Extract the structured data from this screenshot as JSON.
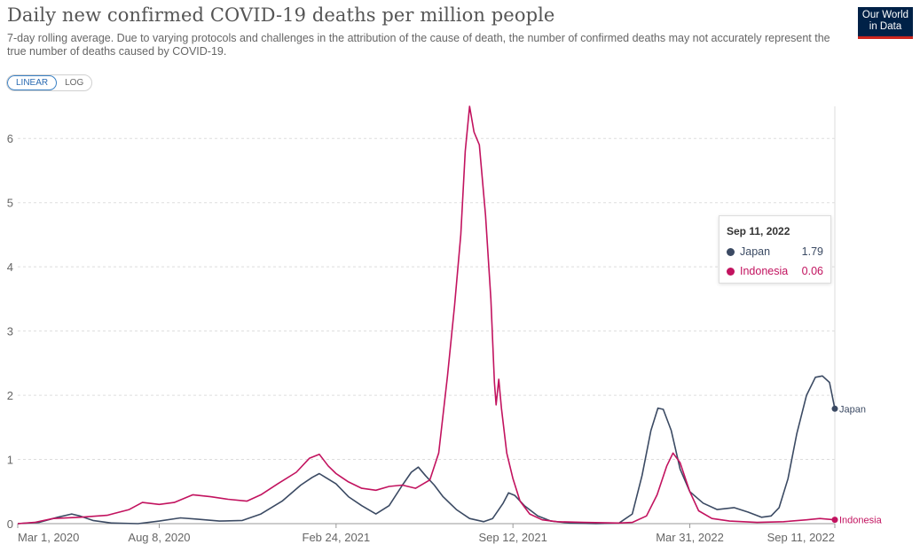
{
  "header": {
    "title": "Daily new confirmed COVID-19 deaths per million people",
    "subtitle": "7-day rolling average. Due to varying protocols and challenges in the attribution of the cause of death, the number of confirmed deaths may not accurately represent the true number of deaths caused by COVID-19.",
    "logo_line1": "Our World",
    "logo_line2": "in Data"
  },
  "scale_toggle": {
    "linear_label": "LINEAR",
    "log_label": "LOG",
    "selected": "LINEAR"
  },
  "tooltip": {
    "date": "Sep 11, 2022",
    "rows": [
      {
        "name": "Japan",
        "value": "1.79",
        "color": "#3b4a63"
      },
      {
        "name": "Indonesia",
        "value": "0.06",
        "color": "#c2135f"
      }
    ]
  },
  "colors": {
    "japan": "#3b4a63",
    "indonesia": "#c2135f",
    "grid": "#dddddd"
  },
  "chart_data": {
    "type": "line",
    "title": "Daily new confirmed COVID-19 deaths per million people",
    "xlabel": "",
    "ylabel": "",
    "ylim": [
      0,
      6.5
    ],
    "xlim": [
      "2020-03-01",
      "2022-09-11"
    ],
    "y_ticks": [
      0,
      1,
      2,
      3,
      4,
      5,
      6
    ],
    "x_ticks": [
      {
        "date": "2020-03-01",
        "label": "Mar 1, 2020"
      },
      {
        "date": "2020-08-08",
        "label": "Aug 8, 2020"
      },
      {
        "date": "2021-02-24",
        "label": "Feb 24, 2021"
      },
      {
        "date": "2021-09-12",
        "label": "Sep 12, 2021"
      },
      {
        "date": "2022-03-31",
        "label": "Mar 31, 2022"
      },
      {
        "date": "2022-09-11",
        "label": "Sep 11, 2022"
      }
    ],
    "grid": "horizontal dashed",
    "series": [
      {
        "name": "Japan",
        "color": "#3b4a63",
        "end_label": "Japan",
        "points": [
          [
            "2020-03-01",
            0.0
          ],
          [
            "2020-03-25",
            0.02
          ],
          [
            "2020-04-15",
            0.1
          ],
          [
            "2020-05-01",
            0.15
          ],
          [
            "2020-05-10",
            0.12
          ],
          [
            "2020-05-25",
            0.05
          ],
          [
            "2020-06-15",
            0.01
          ],
          [
            "2020-07-15",
            0.0
          ],
          [
            "2020-08-08",
            0.04
          ],
          [
            "2020-09-01",
            0.09
          ],
          [
            "2020-09-20",
            0.07
          ],
          [
            "2020-10-15",
            0.04
          ],
          [
            "2020-11-10",
            0.05
          ],
          [
            "2020-12-01",
            0.15
          ],
          [
            "2020-12-25",
            0.35
          ],
          [
            "2021-01-15",
            0.6
          ],
          [
            "2021-01-28",
            0.72
          ],
          [
            "2021-02-05",
            0.78
          ],
          [
            "2021-02-12",
            0.72
          ],
          [
            "2021-02-24",
            0.62
          ],
          [
            "2021-03-10",
            0.42
          ],
          [
            "2021-03-25",
            0.28
          ],
          [
            "2021-04-10",
            0.15
          ],
          [
            "2021-04-25",
            0.28
          ],
          [
            "2021-05-10",
            0.6
          ],
          [
            "2021-05-20",
            0.8
          ],
          [
            "2021-05-28",
            0.88
          ],
          [
            "2021-06-05",
            0.75
          ],
          [
            "2021-06-15",
            0.6
          ],
          [
            "2021-06-25",
            0.42
          ],
          [
            "2021-07-10",
            0.22
          ],
          [
            "2021-07-25",
            0.08
          ],
          [
            "2021-08-10",
            0.03
          ],
          [
            "2021-08-20",
            0.08
          ],
          [
            "2021-09-01",
            0.32
          ],
          [
            "2021-09-07",
            0.48
          ],
          [
            "2021-09-14",
            0.44
          ],
          [
            "2021-09-25",
            0.28
          ],
          [
            "2021-10-10",
            0.12
          ],
          [
            "2021-10-25",
            0.04
          ],
          [
            "2021-11-15",
            0.01
          ],
          [
            "2021-12-15",
            0.0
          ],
          [
            "2022-01-10",
            0.01
          ],
          [
            "2022-01-25",
            0.15
          ],
          [
            "2022-02-05",
            0.75
          ],
          [
            "2022-02-15",
            1.45
          ],
          [
            "2022-02-23",
            1.8
          ],
          [
            "2022-03-01",
            1.78
          ],
          [
            "2022-03-10",
            1.45
          ],
          [
            "2022-03-20",
            0.85
          ],
          [
            "2022-03-31",
            0.5
          ],
          [
            "2022-04-15",
            0.32
          ],
          [
            "2022-05-01",
            0.22
          ],
          [
            "2022-05-20",
            0.25
          ],
          [
            "2022-06-05",
            0.18
          ],
          [
            "2022-06-20",
            0.1
          ],
          [
            "2022-07-01",
            0.12
          ],
          [
            "2022-07-10",
            0.25
          ],
          [
            "2022-07-20",
            0.7
          ],
          [
            "2022-07-30",
            1.4
          ],
          [
            "2022-08-10",
            2.0
          ],
          [
            "2022-08-20",
            2.28
          ],
          [
            "2022-08-28",
            2.3
          ],
          [
            "2022-09-05",
            2.2
          ],
          [
            "2022-09-11",
            1.79
          ]
        ]
      },
      {
        "name": "Indonesia",
        "color": "#c2135f",
        "end_label": "Indonesia",
        "points": [
          [
            "2020-03-01",
            0.0
          ],
          [
            "2020-03-20",
            0.02
          ],
          [
            "2020-04-10",
            0.08
          ],
          [
            "2020-05-10",
            0.1
          ],
          [
            "2020-06-10",
            0.13
          ],
          [
            "2020-07-05",
            0.22
          ],
          [
            "2020-07-20",
            0.33
          ],
          [
            "2020-08-08",
            0.3
          ],
          [
            "2020-08-25",
            0.33
          ],
          [
            "2020-09-15",
            0.45
          ],
          [
            "2020-10-05",
            0.42
          ],
          [
            "2020-10-25",
            0.38
          ],
          [
            "2020-11-15",
            0.35
          ],
          [
            "2020-12-01",
            0.45
          ],
          [
            "2020-12-20",
            0.62
          ],
          [
            "2021-01-10",
            0.8
          ],
          [
            "2021-01-25",
            1.02
          ],
          [
            "2021-02-05",
            1.08
          ],
          [
            "2021-02-15",
            0.9
          ],
          [
            "2021-02-24",
            0.78
          ],
          [
            "2021-03-10",
            0.65
          ],
          [
            "2021-03-25",
            0.55
          ],
          [
            "2021-04-10",
            0.52
          ],
          [
            "2021-04-25",
            0.58
          ],
          [
            "2021-05-10",
            0.6
          ],
          [
            "2021-05-25",
            0.55
          ],
          [
            "2021-06-10",
            0.68
          ],
          [
            "2021-06-20",
            1.1
          ],
          [
            "2021-06-30",
            2.3
          ],
          [
            "2021-07-08",
            3.4
          ],
          [
            "2021-07-15",
            4.5
          ],
          [
            "2021-07-20",
            5.8
          ],
          [
            "2021-07-25",
            6.5
          ],
          [
            "2021-07-30",
            6.1
          ],
          [
            "2021-08-05",
            5.9
          ],
          [
            "2021-08-12",
            4.8
          ],
          [
            "2021-08-18",
            3.5
          ],
          [
            "2021-08-22",
            2.2
          ],
          [
            "2021-08-24",
            1.85
          ],
          [
            "2021-08-27",
            2.25
          ],
          [
            "2021-08-30",
            1.8
          ],
          [
            "2021-09-05",
            1.1
          ],
          [
            "2021-09-12",
            0.7
          ],
          [
            "2021-09-20",
            0.35
          ],
          [
            "2021-10-01",
            0.15
          ],
          [
            "2021-10-15",
            0.06
          ],
          [
            "2021-11-01",
            0.03
          ],
          [
            "2021-12-01",
            0.02
          ],
          [
            "2022-01-10",
            0.01
          ],
          [
            "2022-01-25",
            0.02
          ],
          [
            "2022-02-10",
            0.12
          ],
          [
            "2022-02-22",
            0.45
          ],
          [
            "2022-03-05",
            0.9
          ],
          [
            "2022-03-12",
            1.1
          ],
          [
            "2022-03-20",
            0.95
          ],
          [
            "2022-03-31",
            0.5
          ],
          [
            "2022-04-10",
            0.2
          ],
          [
            "2022-04-25",
            0.08
          ],
          [
            "2022-05-15",
            0.04
          ],
          [
            "2022-06-15",
            0.02
          ],
          [
            "2022-07-15",
            0.03
          ],
          [
            "2022-08-10",
            0.06
          ],
          [
            "2022-08-25",
            0.08
          ],
          [
            "2022-09-11",
            0.06
          ]
        ]
      }
    ]
  }
}
